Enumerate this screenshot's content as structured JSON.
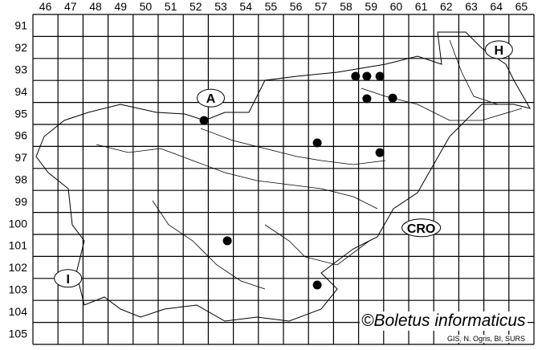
{
  "map": {
    "columns": [
      "46",
      "47",
      "48",
      "49",
      "50",
      "51",
      "52",
      "53",
      "54",
      "55",
      "56",
      "57",
      "58",
      "59",
      "60",
      "61",
      "62",
      "63",
      "64",
      "65"
    ],
    "rows": [
      "91",
      "92",
      "93",
      "94",
      "95",
      "96",
      "97",
      "98",
      "99",
      "100",
      "101",
      "102",
      "103",
      "104",
      "105"
    ],
    "neighbour_labels": [
      {
        "text": "A",
        "col": 52.6,
        "row": 94.3
      },
      {
        "text": "H",
        "col": 64.1,
        "row": 92.1
      },
      {
        "text": "CRO",
        "col": 61.0,
        "row": 100.2
      },
      {
        "text": "I",
        "col": 46.9,
        "row": 102.5
      }
    ],
    "records": [
      {
        "col": 58.38,
        "row": 93.31
      },
      {
        "col": 58.83,
        "row": 93.31
      },
      {
        "col": 59.35,
        "row": 93.31
      },
      {
        "col": 58.83,
        "row": 94.33
      },
      {
        "col": 59.86,
        "row": 94.3
      },
      {
        "col": 52.33,
        "row": 95.32
      },
      {
        "col": 56.85,
        "row": 96.34
      },
      {
        "col": 59.35,
        "row": 96.78
      },
      {
        "col": 53.26,
        "row": 100.79
      },
      {
        "col": 56.85,
        "row": 102.8
      }
    ],
    "dot_color": "#000000"
  },
  "copyright": "©Boletus informaticus",
  "credit": "GIS, N. Ogris, BI, SURS"
}
